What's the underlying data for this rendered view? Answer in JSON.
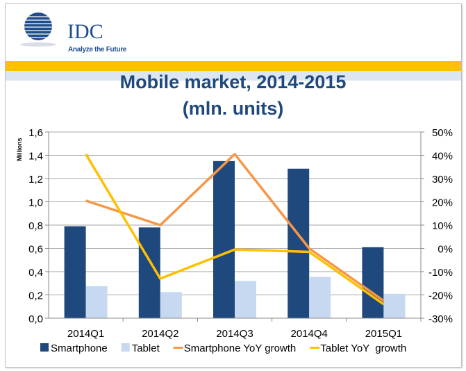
{
  "header": {
    "logo_text": "IDC",
    "logo_tagline": "Analyze the Future"
  },
  "chart_data": {
    "type": "bar",
    "title": "Mobile market, 2014-2015",
    "subtitle": "(mln. units)",
    "ylabel": "Millions",
    "categories": [
      "2014Q1",
      "2014Q2",
      "2014Q3",
      "2014Q4",
      "2015Q1"
    ],
    "ylim": [
      0,
      1.6
    ],
    "yticks": [
      "0,0",
      "0,2",
      "0,4",
      "0,6",
      "0,8",
      "1,0",
      "1,2",
      "1,4",
      "1,6"
    ],
    "y2lim": [
      -30,
      50
    ],
    "y2ticks": [
      "-30%",
      "-20%",
      "-10%",
      "0%",
      "10%",
      "20%",
      "30%",
      "40%",
      "50%"
    ],
    "grid": true,
    "legend_position": "bottom",
    "series": [
      {
        "name": "Smartphone",
        "kind": "bar",
        "axis": "left",
        "color": "#1f497d",
        "values": [
          0.79,
          0.78,
          1.35,
          1.285,
          0.61
        ]
      },
      {
        "name": "Tablet",
        "kind": "bar",
        "axis": "left",
        "color": "#c6d9f1",
        "values": [
          0.275,
          0.225,
          0.32,
          0.355,
          0.21
        ]
      },
      {
        "name": "Smartphone YoY growth",
        "kind": "line",
        "axis": "right",
        "color": "#f79646",
        "values": [
          20.5,
          10,
          40.5,
          0,
          -22.5
        ]
      },
      {
        "name": "Tablet YoY  growth",
        "kind": "line",
        "axis": "right",
        "color": "#ffc000",
        "values": [
          40.5,
          -13,
          -0.5,
          -1.5,
          -24
        ]
      }
    ]
  }
}
